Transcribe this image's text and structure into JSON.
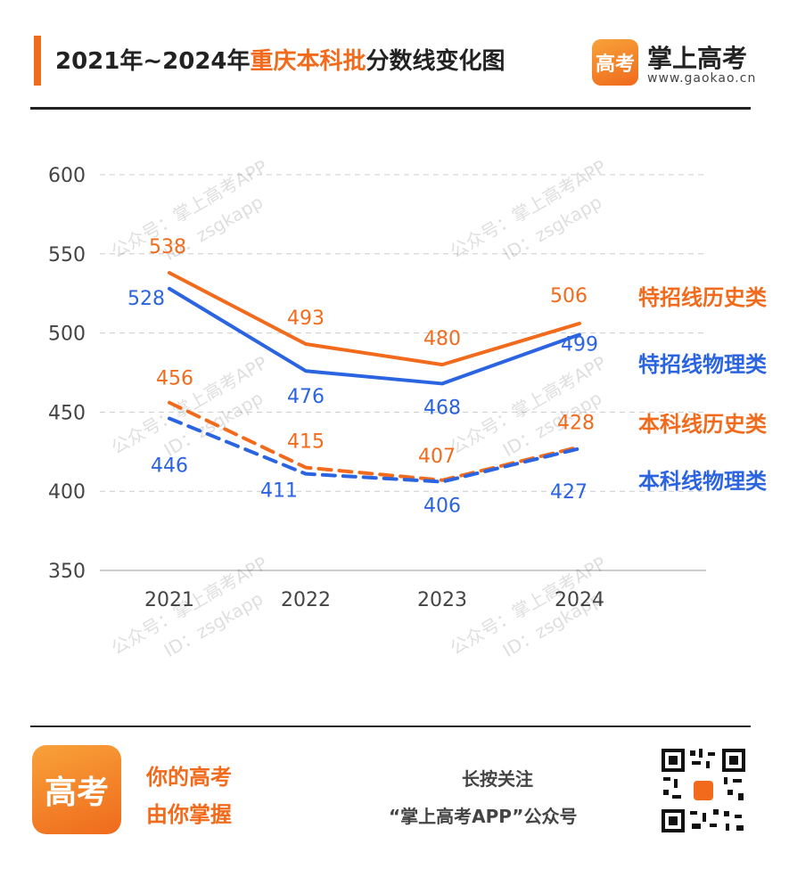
{
  "header": {
    "title_prefix": "2021年~2024年",
    "title_highlight": "重庆本科批",
    "title_suffix": "分数线变化图",
    "brand_logo_text": "高考",
    "brand_name": "掌上高考",
    "brand_url": "www.gaokao.cn"
  },
  "watermark": {
    "line1": "公众号：掌上高考APP",
    "line2": "ID：zsgkapp"
  },
  "colors": {
    "orange": "#f26b1d",
    "blue": "#2b64e0",
    "grid": "#cccccc",
    "axis": "#bbbbbb"
  },
  "chart_data": {
    "type": "line",
    "title": "2021年~2024年重庆本科批分数线变化图",
    "x": [
      "2021",
      "2022",
      "2023",
      "2024"
    ],
    "ylim": [
      350,
      600
    ],
    "yticks": [
      350,
      400,
      450,
      500,
      550,
      600
    ],
    "grid": true,
    "series": [
      {
        "name": "特招线历史类",
        "values": [
          538,
          493,
          480,
          506
        ],
        "color": "#f26b1d",
        "dashed": false
      },
      {
        "name": "特招线物理类",
        "values": [
          528,
          476,
          468,
          499
        ],
        "color": "#2b64e0",
        "dashed": false
      },
      {
        "name": "本科线历史类",
        "values": [
          456,
          415,
          407,
          428
        ],
        "color": "#f26b1d",
        "dashed": true
      },
      {
        "name": "本科线物理类",
        "values": [
          446,
          411,
          406,
          427
        ],
        "color": "#2b64e0",
        "dashed": true
      }
    ]
  },
  "footer": {
    "logo_text": "高考",
    "slogan_line1": "你的高考",
    "slogan_line2": "由你掌握",
    "follow_line1": "长按关注",
    "follow_line2": "“掌上高考APP”公众号"
  }
}
